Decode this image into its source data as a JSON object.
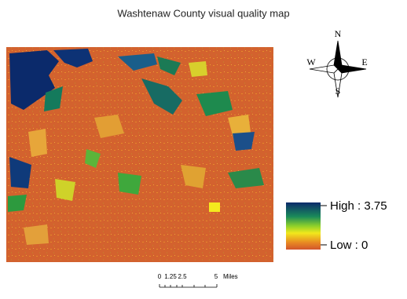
{
  "map": {
    "title": "Washtenaw County visual quality map",
    "compass": {
      "north": "N",
      "south": "S",
      "east": "E",
      "west": "W"
    },
    "legend": {
      "high": "High : 3.75",
      "low": "Low : 0"
    },
    "scale_bar": {
      "labels": [
        "0",
        "1.25",
        "2.5",
        "5"
      ],
      "unit": "Miles"
    }
  }
}
